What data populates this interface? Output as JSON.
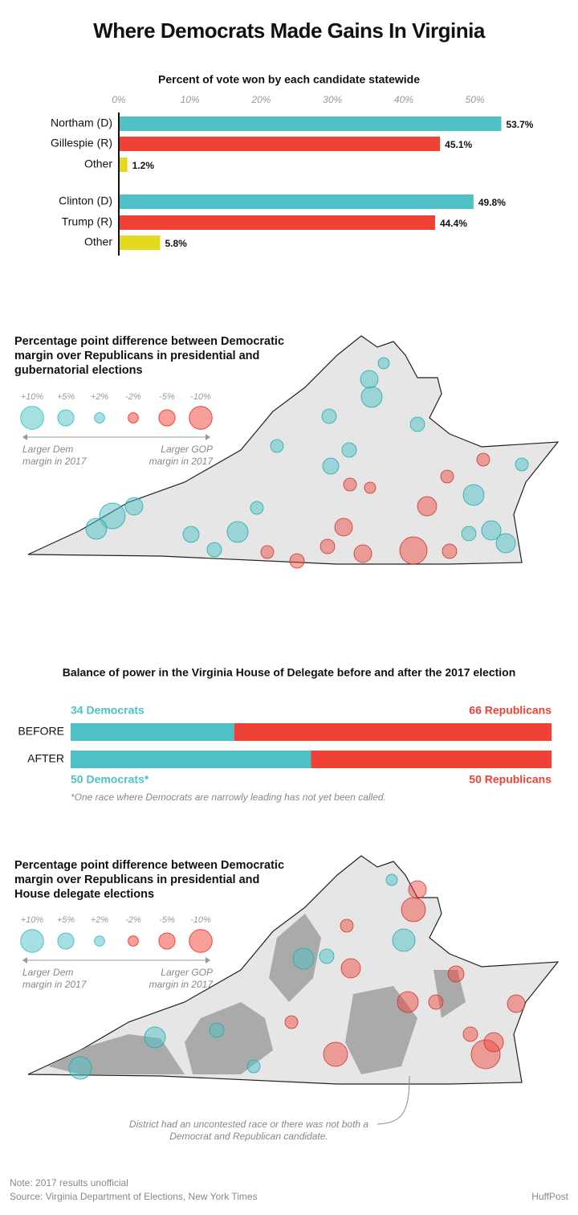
{
  "title": "Where Democrats Made Gains In Virginia",
  "chart_data": [
    {
      "type": "hbar",
      "title": "Percent of vote won by each candidate statewide",
      "categories": [
        "Northam (D)",
        "Gillespie (R)",
        "Other",
        "Clinton (D)",
        "Trump (R)",
        "Other"
      ],
      "values": [
        53.7,
        45.1,
        1.2,
        49.8,
        44.4,
        5.8
      ],
      "value_labels": [
        "53.7%",
        "45.1%",
        "1.2%",
        "49.8%",
        "44.4%",
        "5.8%"
      ],
      "colors": [
        "#4fc1c6",
        "#ef4136",
        "#e3d91f",
        "#4fc1c6",
        "#ef4136",
        "#e3d91f"
      ],
      "xlim": [
        0,
        55
      ],
      "xticks": [
        {
          "value": 0,
          "label": "0%"
        },
        {
          "value": 10,
          "label": "10%"
        },
        {
          "value": 20,
          "label": "20%"
        },
        {
          "value": 30,
          "label": "30%"
        },
        {
          "value": 40,
          "label": "40%"
        },
        {
          "value": 50,
          "label": "50%"
        }
      ]
    },
    {
      "type": "stacked_hbar",
      "title": "Balance of power in the Virginia House of Delegate before and after the 2017 election",
      "categories": [
        "BEFORE",
        "AFTER"
      ],
      "series": [
        {
          "name": "Democrats",
          "color": "#4fc1c6",
          "values": [
            34,
            50
          ],
          "value_labels": [
            "34 Democrats",
            "50 Democrats*"
          ]
        },
        {
          "name": "Republicans",
          "color": "#ef4136",
          "values": [
            66,
            50
          ],
          "value_labels": [
            "66 Republicans",
            "50 Republicans"
          ]
        }
      ],
      "xlim": [
        0,
        100
      ],
      "footnote": "*One race where Democrats are narrowly leading has not yet been called."
    }
  ],
  "maps": [
    {
      "title": "Percentage point difference between Democratic margin over Republicans in presidential and gubernatorial elections",
      "legend": {
        "values": [
          10,
          5,
          2,
          -2,
          -5,
          -10
        ],
        "labels": [
          "+10%",
          "+5%",
          "+2%",
          "-2%",
          "-5%",
          "-10%"
        ],
        "left": "Larger Dem margin in 2017",
        "right": "Larger GOP margin in 2017"
      }
    },
    {
      "title": "Percentage point difference between Democratic margin over Republicans in presidential and House delegate elections",
      "legend": {
        "values": [
          10,
          5,
          2,
          -2,
          -5,
          -10
        ],
        "labels": [
          "+10%",
          "+5%",
          "+2%",
          "-2%",
          "-5%",
          "-10%"
        ],
        "left": "Larger Dem margin in 2017",
        "right": "Larger GOP margin in 2017"
      },
      "annotation": "District had an uncontested race or there was not both a Democrat and Republican candidate."
    }
  ],
  "note": "Note: 2017 results unofficial",
  "source": "Source: Virginia Department of Elections, New York Times",
  "credit": "HuffPost"
}
